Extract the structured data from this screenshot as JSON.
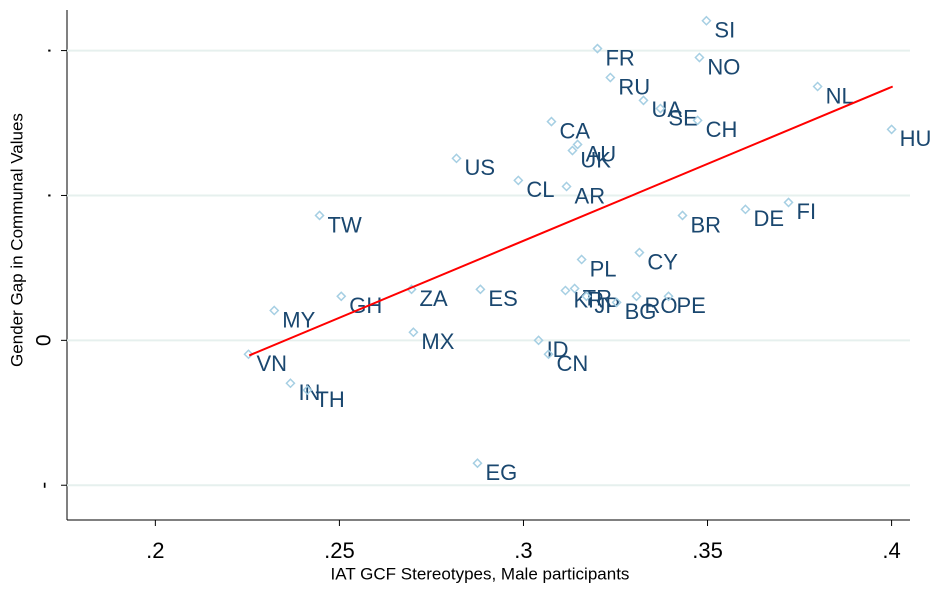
{
  "chart_data": {
    "type": "scatter",
    "xlabel": "IAT GCF Stereotypes, Male participants",
    "ylabel": "Gender Gap in Communal Values",
    "xlim": [
      0.176,
      0.405
    ],
    "ylim": [
      -0.062,
      0.114
    ],
    "xticks": [
      {
        "value": 0.2,
        "label": ".2"
      },
      {
        "value": 0.25,
        "label": ".25"
      },
      {
        "value": 0.3,
        "label": ".3"
      },
      {
        "value": 0.35,
        "label": ".35"
      },
      {
        "value": 0.4,
        "label": ".4"
      }
    ],
    "yticks": [
      {
        "value": -0.05,
        "label": "-"
      },
      0,
      {
        "value": 0.05,
        "label": "."
      },
      {
        "value": 0.1,
        "label": "."
      }
    ],
    "grid": true,
    "series": [
      {
        "color": "#a6cfe3",
        "label_color": "#1a476f",
        "labels": [
          "SI",
          "FR",
          "NO",
          "RU",
          "UA",
          "SE",
          "CH",
          "NL",
          "HU",
          "CA",
          "AU",
          "UK",
          "US",
          "CL",
          "AR",
          "TW",
          "BR",
          "DE",
          "FI",
          "CY",
          "PL",
          "ZA",
          "ES",
          "KR",
          "TR",
          "JP",
          "RO",
          "BG",
          "PE",
          "GH",
          "MY",
          "MX",
          "ID",
          "CN",
          "VN",
          "IN",
          "TH",
          "EG"
        ],
        "x": [
          0.3497,
          0.3201,
          0.3478,
          0.3236,
          0.3326,
          0.3372,
          0.3473,
          0.3799,
          0.4,
          0.3076,
          0.3147,
          0.3133,
          0.2818,
          0.2986,
          0.3117,
          0.2446,
          0.3432,
          0.3603,
          0.372,
          0.3315,
          0.3158,
          0.2696,
          0.2883,
          0.3114,
          0.3139,
          0.3171,
          0.3307,
          0.3253,
          0.3394,
          0.2505,
          0.2323,
          0.2701,
          0.3041,
          0.3068,
          0.2253,
          0.2367,
          0.2413,
          0.2875
        ],
        "values": [
          0.1103,
          0.1007,
          0.0976,
          0.0907,
          0.0828,
          0.08,
          0.0759,
          0.0876,
          0.0728,
          0.0755,
          0.0676,
          0.0655,
          0.0628,
          0.0552,
          0.0531,
          0.0431,
          0.0431,
          0.0452,
          0.0476,
          0.0303,
          0.0279,
          0.0176,
          0.0176,
          0.0172,
          0.0179,
          0.0152,
          0.0152,
          0.0131,
          0.0152,
          0.0152,
          0.0103,
          0.0028,
          0,
          -0.0048,
          -0.0048,
          -0.0148,
          -0.0172,
          -0.0424
        ]
      }
    ],
    "fit": {
      "color": "#ff0000",
      "x": [
        0.2255,
        0.4003
      ],
      "values": [
        -0.0052,
        0.0876
      ]
    }
  }
}
